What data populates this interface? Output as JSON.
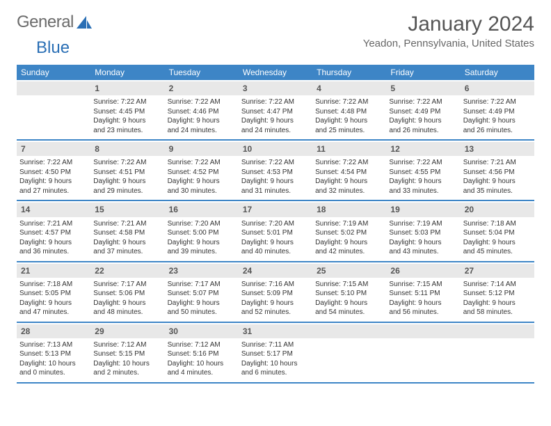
{
  "brand": {
    "part1": "General",
    "part2": "Blue"
  },
  "title": "January 2024",
  "location": "Yeadon, Pennsylvania, United States",
  "colors": {
    "header_bg": "#3d85c6",
    "header_text": "#ffffff",
    "daynum_bg": "#e8e8e8",
    "border": "#3d85c6",
    "body_text": "#333333",
    "title_text": "#555555",
    "logo_gray": "#6b6b6b",
    "logo_blue": "#2a6fb5",
    "background": "#ffffff"
  },
  "typography": {
    "title_fontsize": 30,
    "location_fontsize": 15,
    "header_fontsize": 12,
    "cell_fontsize": 10,
    "daynum_fontsize": 12
  },
  "layout": {
    "columns": 7,
    "rows": 5,
    "cell_min_height": 84
  },
  "dayNames": [
    "Sunday",
    "Monday",
    "Tuesday",
    "Wednesday",
    "Thursday",
    "Friday",
    "Saturday"
  ],
  "weeks": [
    [
      null,
      {
        "n": "1",
        "sunrise": "Sunrise: 7:22 AM",
        "sunset": "Sunset: 4:45 PM",
        "day1": "Daylight: 9 hours",
        "day2": "and 23 minutes."
      },
      {
        "n": "2",
        "sunrise": "Sunrise: 7:22 AM",
        "sunset": "Sunset: 4:46 PM",
        "day1": "Daylight: 9 hours",
        "day2": "and 24 minutes."
      },
      {
        "n": "3",
        "sunrise": "Sunrise: 7:22 AM",
        "sunset": "Sunset: 4:47 PM",
        "day1": "Daylight: 9 hours",
        "day2": "and 24 minutes."
      },
      {
        "n": "4",
        "sunrise": "Sunrise: 7:22 AM",
        "sunset": "Sunset: 4:48 PM",
        "day1": "Daylight: 9 hours",
        "day2": "and 25 minutes."
      },
      {
        "n": "5",
        "sunrise": "Sunrise: 7:22 AM",
        "sunset": "Sunset: 4:49 PM",
        "day1": "Daylight: 9 hours",
        "day2": "and 26 minutes."
      },
      {
        "n": "6",
        "sunrise": "Sunrise: 7:22 AM",
        "sunset": "Sunset: 4:49 PM",
        "day1": "Daylight: 9 hours",
        "day2": "and 26 minutes."
      }
    ],
    [
      {
        "n": "7",
        "sunrise": "Sunrise: 7:22 AM",
        "sunset": "Sunset: 4:50 PM",
        "day1": "Daylight: 9 hours",
        "day2": "and 27 minutes."
      },
      {
        "n": "8",
        "sunrise": "Sunrise: 7:22 AM",
        "sunset": "Sunset: 4:51 PM",
        "day1": "Daylight: 9 hours",
        "day2": "and 29 minutes."
      },
      {
        "n": "9",
        "sunrise": "Sunrise: 7:22 AM",
        "sunset": "Sunset: 4:52 PM",
        "day1": "Daylight: 9 hours",
        "day2": "and 30 minutes."
      },
      {
        "n": "10",
        "sunrise": "Sunrise: 7:22 AM",
        "sunset": "Sunset: 4:53 PM",
        "day1": "Daylight: 9 hours",
        "day2": "and 31 minutes."
      },
      {
        "n": "11",
        "sunrise": "Sunrise: 7:22 AM",
        "sunset": "Sunset: 4:54 PM",
        "day1": "Daylight: 9 hours",
        "day2": "and 32 minutes."
      },
      {
        "n": "12",
        "sunrise": "Sunrise: 7:22 AM",
        "sunset": "Sunset: 4:55 PM",
        "day1": "Daylight: 9 hours",
        "day2": "and 33 minutes."
      },
      {
        "n": "13",
        "sunrise": "Sunrise: 7:21 AM",
        "sunset": "Sunset: 4:56 PM",
        "day1": "Daylight: 9 hours",
        "day2": "and 35 minutes."
      }
    ],
    [
      {
        "n": "14",
        "sunrise": "Sunrise: 7:21 AM",
        "sunset": "Sunset: 4:57 PM",
        "day1": "Daylight: 9 hours",
        "day2": "and 36 minutes."
      },
      {
        "n": "15",
        "sunrise": "Sunrise: 7:21 AM",
        "sunset": "Sunset: 4:58 PM",
        "day1": "Daylight: 9 hours",
        "day2": "and 37 minutes."
      },
      {
        "n": "16",
        "sunrise": "Sunrise: 7:20 AM",
        "sunset": "Sunset: 5:00 PM",
        "day1": "Daylight: 9 hours",
        "day2": "and 39 minutes."
      },
      {
        "n": "17",
        "sunrise": "Sunrise: 7:20 AM",
        "sunset": "Sunset: 5:01 PM",
        "day1": "Daylight: 9 hours",
        "day2": "and 40 minutes."
      },
      {
        "n": "18",
        "sunrise": "Sunrise: 7:19 AM",
        "sunset": "Sunset: 5:02 PM",
        "day1": "Daylight: 9 hours",
        "day2": "and 42 minutes."
      },
      {
        "n": "19",
        "sunrise": "Sunrise: 7:19 AM",
        "sunset": "Sunset: 5:03 PM",
        "day1": "Daylight: 9 hours",
        "day2": "and 43 minutes."
      },
      {
        "n": "20",
        "sunrise": "Sunrise: 7:18 AM",
        "sunset": "Sunset: 5:04 PM",
        "day1": "Daylight: 9 hours",
        "day2": "and 45 minutes."
      }
    ],
    [
      {
        "n": "21",
        "sunrise": "Sunrise: 7:18 AM",
        "sunset": "Sunset: 5:05 PM",
        "day1": "Daylight: 9 hours",
        "day2": "and 47 minutes."
      },
      {
        "n": "22",
        "sunrise": "Sunrise: 7:17 AM",
        "sunset": "Sunset: 5:06 PM",
        "day1": "Daylight: 9 hours",
        "day2": "and 48 minutes."
      },
      {
        "n": "23",
        "sunrise": "Sunrise: 7:17 AM",
        "sunset": "Sunset: 5:07 PM",
        "day1": "Daylight: 9 hours",
        "day2": "and 50 minutes."
      },
      {
        "n": "24",
        "sunrise": "Sunrise: 7:16 AM",
        "sunset": "Sunset: 5:09 PM",
        "day1": "Daylight: 9 hours",
        "day2": "and 52 minutes."
      },
      {
        "n": "25",
        "sunrise": "Sunrise: 7:15 AM",
        "sunset": "Sunset: 5:10 PM",
        "day1": "Daylight: 9 hours",
        "day2": "and 54 minutes."
      },
      {
        "n": "26",
        "sunrise": "Sunrise: 7:15 AM",
        "sunset": "Sunset: 5:11 PM",
        "day1": "Daylight: 9 hours",
        "day2": "and 56 minutes."
      },
      {
        "n": "27",
        "sunrise": "Sunrise: 7:14 AM",
        "sunset": "Sunset: 5:12 PM",
        "day1": "Daylight: 9 hours",
        "day2": "and 58 minutes."
      }
    ],
    [
      {
        "n": "28",
        "sunrise": "Sunrise: 7:13 AM",
        "sunset": "Sunset: 5:13 PM",
        "day1": "Daylight: 10 hours",
        "day2": "and 0 minutes."
      },
      {
        "n": "29",
        "sunrise": "Sunrise: 7:12 AM",
        "sunset": "Sunset: 5:15 PM",
        "day1": "Daylight: 10 hours",
        "day2": "and 2 minutes."
      },
      {
        "n": "30",
        "sunrise": "Sunrise: 7:12 AM",
        "sunset": "Sunset: 5:16 PM",
        "day1": "Daylight: 10 hours",
        "day2": "and 4 minutes."
      },
      {
        "n": "31",
        "sunrise": "Sunrise: 7:11 AM",
        "sunset": "Sunset: 5:17 PM",
        "day1": "Daylight: 10 hours",
        "day2": "and 6 minutes."
      },
      null,
      null,
      null
    ]
  ]
}
